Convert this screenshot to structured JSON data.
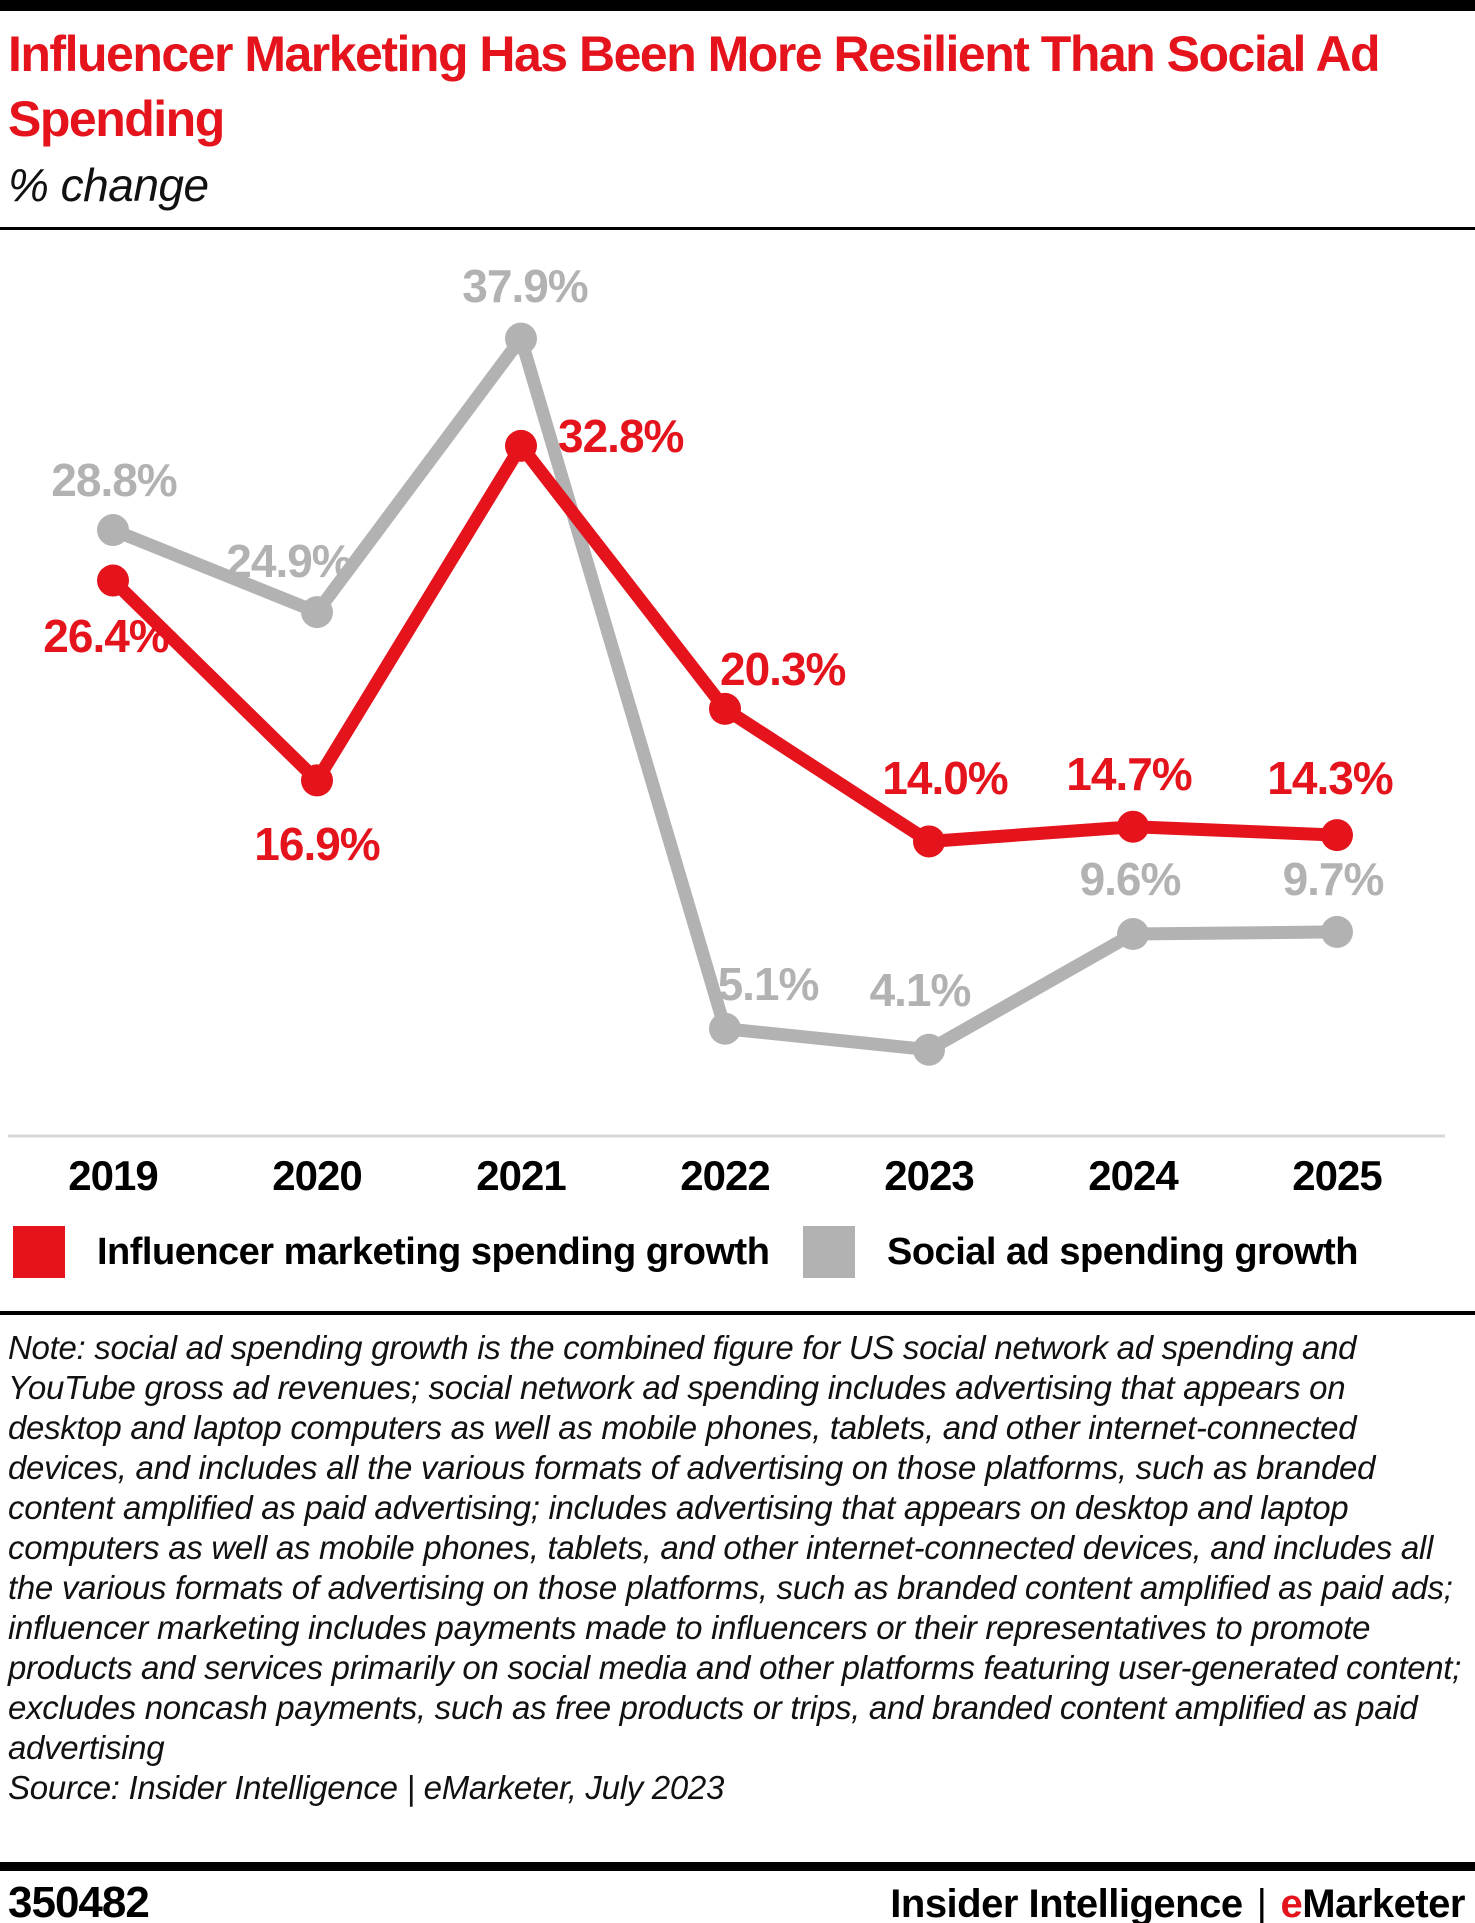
{
  "colors": {
    "red": "#e4131c",
    "gray": "#b2b2b2",
    "axis_line": "#d8d8d8"
  },
  "header": {
    "title": "Influencer Marketing Has Been More Resilient Than Social Ad Spending",
    "subtitle": "% change"
  },
  "chart_data": {
    "type": "line",
    "categories": [
      "2019",
      "2020",
      "2021",
      "2022",
      "2023",
      "2024",
      "2025"
    ],
    "series": [
      {
        "name": "Influencer marketing spending growth",
        "color": "#e4131c",
        "values": [
          26.4,
          16.9,
          32.8,
          20.3,
          14.0,
          14.7,
          14.3
        ]
      },
      {
        "name": "Social ad spending growth",
        "color": "#b2b2b2",
        "values": [
          28.8,
          24.9,
          37.9,
          5.1,
          4.1,
          9.6,
          9.7
        ]
      }
    ],
    "unit": "%",
    "ylim": [
      0,
      40
    ],
    "grid": false,
    "baseline_value": 0,
    "legend_position": "bottom",
    "data_labels": true
  },
  "note": "Note: social ad spending growth is the combined figure for US social network ad spending and YouTube gross ad revenues; social network ad spending includes advertising that appears on desktop and laptop computers as well as mobile phones, tablets, and other internet-connected devices, and includes all the various formats of advertising on those platforms, such as branded content amplified as paid advertising; includes advertising that appears on desktop and laptop computers as well as mobile phones, tablets, and other internet-connected devices, and includes all the various formats of advertising on those platforms, such as branded content amplified as paid ads; influencer marketing includes payments made to influencers or their representatives to promote products and services primarily on social media and other platforms featuring user-generated content; excludes noncash payments, such as free products or trips, and branded content amplified as paid advertising",
  "source": "Source: Insider Intelligence | eMarketer, July 2023",
  "footer": {
    "id": "350482",
    "brand_left": "Insider Intelligence",
    "separator": "|",
    "brand_accent": "e",
    "brand_rest": "Marketer"
  }
}
